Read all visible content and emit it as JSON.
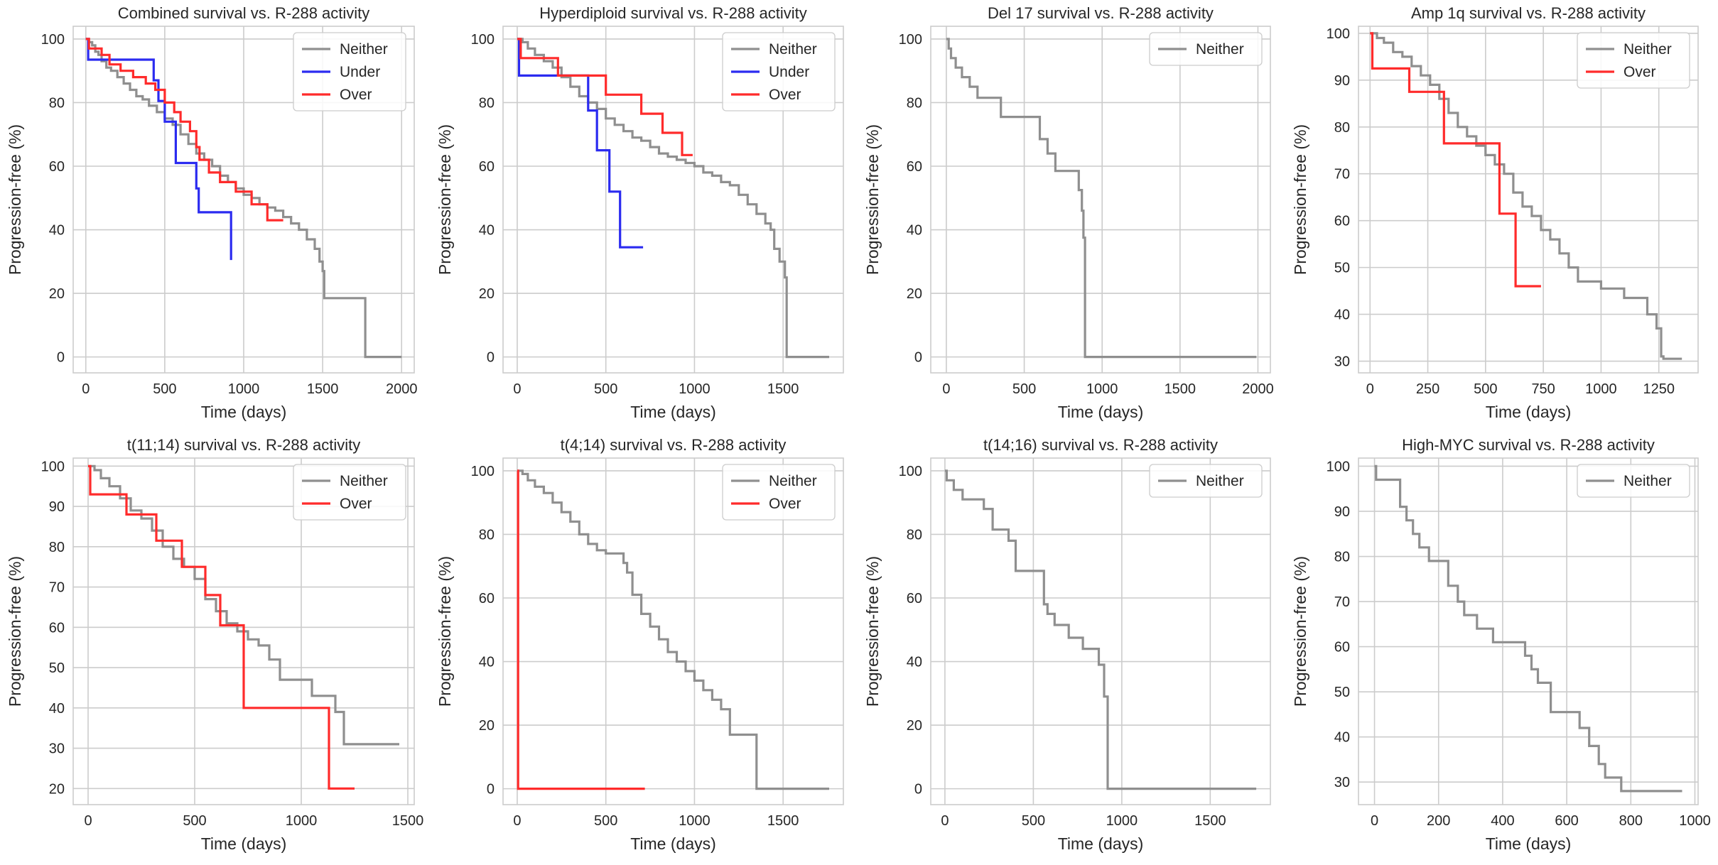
{
  "colors": {
    "Neither": "#8f8f8f",
    "Under": "#2b2bf0",
    "Over": "#ff2b2b"
  },
  "chart_data": [
    {
      "type": "line",
      "title": "Combined survival vs. R-288 activity",
      "xlabel": "Time (days)",
      "ylabel": "Progression-free (%)",
      "xlim": [
        -80,
        2080
      ],
      "ylim": [
        -5,
        104
      ],
      "xticks": [
        0,
        500,
        1000,
        1500,
        2000
      ],
      "yticks": [
        0,
        20,
        40,
        60,
        80,
        100
      ],
      "legend": [
        "Neither",
        "Under",
        "Over"
      ],
      "series": [
        {
          "name": "Neither",
          "x": [
            0,
            20,
            40,
            60,
            80,
            100,
            130,
            160,
            200,
            240,
            280,
            320,
            360,
            400,
            450,
            500,
            550,
            600,
            650,
            700,
            750,
            800,
            850,
            900,
            950,
            1000,
            1050,
            1100,
            1150,
            1200,
            1250,
            1300,
            1350,
            1400,
            1450,
            1480,
            1500,
            1510,
            1760,
            1770,
            2000
          ],
          "y": [
            100,
            99,
            98,
            96,
            95,
            93,
            91,
            90,
            88,
            86,
            84,
            82,
            81,
            79,
            77,
            75,
            73,
            70,
            67,
            64,
            62,
            60,
            57,
            55,
            53,
            51,
            50,
            48,
            47,
            46,
            44,
            42,
            40,
            37,
            34,
            30,
            27,
            18.5,
            18.5,
            0,
            0
          ]
        },
        {
          "name": "Under",
          "x": [
            0,
            15,
            400,
            430,
            460,
            500,
            570,
            700,
            715,
            920
          ],
          "y": [
            100,
            93.5,
            93.5,
            87,
            80.5,
            74,
            61,
            53,
            45.5,
            30.5
          ]
        },
        {
          "name": "Over",
          "x": [
            0,
            20,
            100,
            150,
            220,
            300,
            380,
            440,
            500,
            560,
            600,
            660,
            700,
            720,
            780,
            850,
            950,
            1050,
            1150,
            1250
          ],
          "y": [
            100,
            97,
            95,
            92,
            90,
            88,
            86,
            84,
            80,
            77,
            74,
            71,
            66,
            62,
            58,
            55,
            52,
            48,
            43,
            43
          ]
        }
      ]
    },
    {
      "type": "line",
      "title": "Hyperdiploid survival vs. R-288 activity",
      "xlabel": "Time (days)",
      "ylabel": "Progression-free (%)",
      "xlim": [
        -80,
        1840
      ],
      "ylim": [
        -5,
        104
      ],
      "xticks": [
        0,
        500,
        1000,
        1500
      ],
      "yticks": [
        0,
        20,
        40,
        60,
        80,
        100
      ],
      "legend": [
        "Neither",
        "Under",
        "Over"
      ],
      "series": [
        {
          "name": "Neither",
          "x": [
            0,
            30,
            60,
            100,
            150,
            200,
            250,
            300,
            350,
            400,
            450,
            500,
            550,
            600,
            650,
            700,
            750,
            800,
            850,
            900,
            950,
            1000,
            1050,
            1100,
            1150,
            1200,
            1250,
            1300,
            1350,
            1400,
            1430,
            1450,
            1480,
            1510,
            1520,
            1760
          ],
          "y": [
            100,
            99,
            97,
            95,
            93,
            91,
            88,
            85,
            82,
            80,
            78,
            75,
            73,
            71,
            69,
            68,
            66,
            64,
            63,
            62,
            61,
            60,
            58,
            57,
            55,
            54,
            51,
            48,
            45,
            42,
            40,
            34,
            30,
            25,
            0,
            0
          ]
        },
        {
          "name": "Under",
          "x": [
            0,
            10,
            380,
            400,
            450,
            520,
            580,
            710
          ],
          "y": [
            100,
            88.5,
            88.5,
            77.5,
            65,
            52,
            34.5,
            34.5
          ]
        },
        {
          "name": "Over",
          "x": [
            0,
            20,
            230,
            350,
            500,
            700,
            820,
            930,
            990
          ],
          "y": [
            100,
            94,
            88.5,
            88.5,
            82.5,
            76.5,
            70.5,
            63.5,
            63.5
          ]
        }
      ]
    },
    {
      "type": "line",
      "title": "Del 17 survival vs. R-288 activity",
      "xlabel": "Time (days)",
      "ylabel": "Progression-free (%)",
      "xlim": [
        -100,
        2080
      ],
      "ylim": [
        -5,
        104
      ],
      "xticks": [
        0,
        500,
        1000,
        1500,
        2000
      ],
      "yticks": [
        0,
        20,
        40,
        60,
        80,
        100
      ],
      "legend": [
        "Neither"
      ],
      "series": [
        {
          "name": "Neither",
          "x": [
            0,
            15,
            30,
            60,
            100,
            150,
            200,
            350,
            550,
            600,
            650,
            700,
            850,
            870,
            880,
            890,
            900,
            1990
          ],
          "y": [
            100,
            97,
            94,
            91,
            88,
            85,
            81.5,
            75.5,
            75.5,
            68.5,
            64,
            58.5,
            52.5,
            46,
            37.5,
            0,
            0,
            0
          ]
        }
      ]
    },
    {
      "type": "line",
      "title": "Amp 1q survival vs. R-288 activity",
      "xlabel": "Time (days)",
      "ylabel": "Progression-free (%)",
      "xlim": [
        -50,
        1420
      ],
      "ylim": [
        27.5,
        101.5
      ],
      "xticks": [
        0,
        250,
        500,
        750,
        1000,
        1250
      ],
      "yticks": [
        30,
        40,
        50,
        60,
        70,
        80,
        90,
        100
      ],
      "legend": [
        "Neither",
        "Over"
      ],
      "series": [
        {
          "name": "Neither",
          "x": [
            0,
            30,
            60,
            100,
            140,
            180,
            220,
            260,
            300,
            340,
            380,
            420,
            460,
            500,
            540,
            580,
            620,
            660,
            700,
            740,
            780,
            820,
            860,
            900,
            1000,
            1100,
            1150,
            1200,
            1240,
            1260,
            1270,
            1350
          ],
          "y": [
            100,
            99,
            98,
            96,
            95,
            93,
            91,
            89,
            86,
            83,
            80,
            78,
            76,
            74,
            72,
            70,
            66,
            63,
            61,
            58,
            56,
            53,
            50,
            47,
            45.5,
            43.5,
            43.5,
            40,
            37,
            31,
            30.5,
            30.5
          ]
        },
        {
          "name": "Over",
          "x": [
            0,
            10,
            170,
            320,
            560,
            630,
            740
          ],
          "y": [
            100,
            92.5,
            87.5,
            76.5,
            61.5,
            46,
            46
          ]
        }
      ]
    },
    {
      "type": "line",
      "title": "t(11;14) survival vs. R-288 activity",
      "xlabel": "Time (days)",
      "ylabel": "Progression-free (%)",
      "xlim": [
        -70,
        1530
      ],
      "ylim": [
        16,
        102
      ],
      "xticks": [
        0,
        500,
        1000,
        1500
      ],
      "yticks": [
        20,
        30,
        40,
        50,
        60,
        70,
        80,
        90,
        100
      ],
      "legend": [
        "Neither",
        "Over"
      ],
      "series": [
        {
          "name": "Neither",
          "x": [
            0,
            30,
            60,
            100,
            150,
            200,
            250,
            300,
            350,
            400,
            450,
            500,
            550,
            600,
            650,
            700,
            750,
            800,
            850,
            900,
            1000,
            1050,
            1120,
            1160,
            1200,
            1460
          ],
          "y": [
            100,
            99,
            97,
            95,
            92,
            89,
            87,
            84,
            80,
            77,
            75,
            72,
            67,
            64,
            61,
            59,
            57,
            55.5,
            52,
            47,
            47,
            43,
            43,
            39,
            31,
            31
          ]
        },
        {
          "name": "Over",
          "x": [
            0,
            10,
            180,
            320,
            440,
            550,
            620,
            730,
            1000,
            1130,
            1250
          ],
          "y": [
            100,
            93,
            88,
            81.5,
            75,
            68,
            60.5,
            40,
            40,
            20,
            20
          ]
        }
      ]
    },
    {
      "type": "line",
      "title": "t(4;14) survival vs. R-288 activity",
      "xlabel": "Time (days)",
      "ylabel": "Progression-free (%)",
      "xlim": [
        -80,
        1840
      ],
      "ylim": [
        -5,
        104
      ],
      "xticks": [
        0,
        500,
        1000,
        1500
      ],
      "yticks": [
        0,
        20,
        40,
        60,
        80,
        100
      ],
      "legend": [
        "Neither",
        "Over"
      ],
      "series": [
        {
          "name": "Neither",
          "x": [
            0,
            30,
            60,
            100,
            150,
            200,
            250,
            300,
            350,
            400,
            450,
            500,
            600,
            620,
            650,
            700,
            750,
            800,
            850,
            900,
            950,
            1000,
            1050,
            1100,
            1150,
            1200,
            1300,
            1350,
            1760
          ],
          "y": [
            100,
            99,
            97,
            95,
            93,
            90,
            87,
            84,
            80,
            77,
            75,
            74,
            71,
            68,
            61,
            55,
            51,
            47,
            43,
            40,
            37,
            34,
            31,
            28,
            25,
            17,
            17,
            0,
            0
          ]
        },
        {
          "name": "Over",
          "x": [
            0,
            5,
            720
          ],
          "y": [
            100,
            0,
            0
          ]
        }
      ]
    },
    {
      "type": "line",
      "title": "t(14;16) survival vs. R-288 activity",
      "xlabel": "Time (days)",
      "ylabel": "Progression-free (%)",
      "xlim": [
        -80,
        1840
      ],
      "ylim": [
        -5,
        104
      ],
      "xticks": [
        0,
        500,
        1000,
        1500
      ],
      "yticks": [
        0,
        20,
        40,
        60,
        80,
        100
      ],
      "legend": [
        "Neither"
      ],
      "series": [
        {
          "name": "Neither",
          "x": [
            0,
            10,
            50,
            100,
            220,
            270,
            360,
            400,
            550,
            560,
            580,
            620,
            700,
            780,
            870,
            900,
            920,
            1760
          ],
          "y": [
            100,
            97,
            94,
            91,
            88,
            81.5,
            78,
            68.5,
            68.5,
            58,
            55,
            51.5,
            47.5,
            44,
            39,
            29,
            0,
            0
          ]
        }
      ]
    },
    {
      "type": "line",
      "title": "High-MYC survival vs. R-288 activity",
      "xlabel": "Time (days)",
      "ylabel": "Progression-free (%)",
      "xlim": [
        -50,
        1010
      ],
      "ylim": [
        25,
        101.8
      ],
      "xticks": [
        0,
        200,
        400,
        600,
        800,
        1000
      ],
      "yticks": [
        30,
        40,
        50,
        60,
        70,
        80,
        90,
        100
      ],
      "legend": [
        "Neither"
      ],
      "series": [
        {
          "name": "Neither",
          "x": [
            0,
            5,
            80,
            100,
            120,
            140,
            170,
            230,
            260,
            280,
            320,
            370,
            450,
            470,
            490,
            510,
            550,
            640,
            670,
            700,
            720,
            770,
            960
          ],
          "y": [
            100,
            97,
            91,
            88,
            85,
            82,
            79,
            73.5,
            70,
            67,
            64,
            61,
            61,
            58,
            55,
            52,
            45.5,
            42,
            38,
            34,
            31,
            28,
            28
          ]
        }
      ]
    }
  ]
}
